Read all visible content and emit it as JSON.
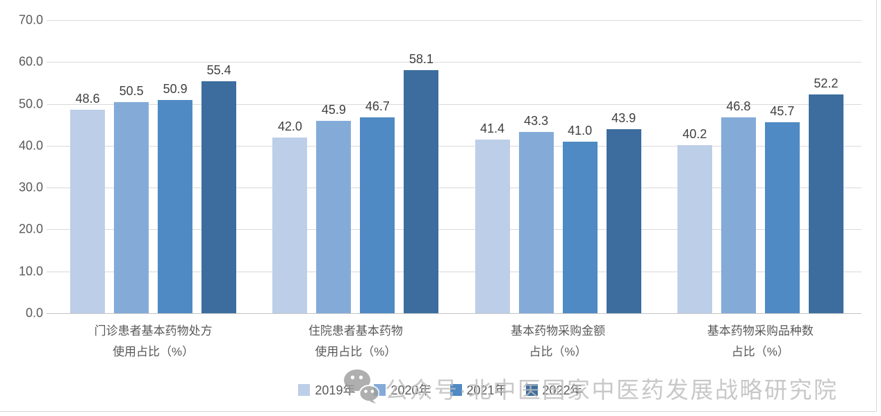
{
  "chart_data": {
    "type": "bar",
    "categories": [
      "门诊患者基本药物处方\n使用占比（%）",
      "住院患者基本药物\n使用占比（%）",
      "基本药物采购金额\n占比（%）",
      "基本药物采购品种数\n占比（%）"
    ],
    "series": [
      {
        "name": "2019年",
        "color": "#bccee8",
        "values": [
          48.6,
          42.0,
          41.4,
          40.2
        ]
      },
      {
        "name": "2020年",
        "color": "#84abd8",
        "values": [
          50.5,
          45.9,
          43.3,
          46.8
        ]
      },
      {
        "name": "2021年",
        "color": "#4f8ac4",
        "values": [
          50.9,
          46.7,
          41.0,
          45.7
        ]
      },
      {
        "name": "2022年",
        "color": "#3c6d9e",
        "values": [
          55.4,
          58.1,
          43.9,
          52.2
        ]
      }
    ],
    "title": "",
    "xlabel": "",
    "ylabel": "",
    "ylim": [
      0,
      70
    ],
    "ytick_step": 10,
    "ytick_decimals": 1,
    "grid": true,
    "value_labels": true,
    "value_label_decimals": 1,
    "legend_position": "bottom"
  },
  "watermark": {
    "icon": "wechat-icon",
    "text": "公众号·北中医国家中医药发展战略研究院"
  },
  "colors": {
    "background": "#ffffff",
    "gridline": "#d9d9d9",
    "axis_baseline": "#c4c4c4",
    "axis_text": "#595959",
    "value_label_text": "#404040",
    "legend_text": "#595959",
    "watermark_text": "#bdbdbd",
    "watermark_icon": "#9e9e9e"
  }
}
